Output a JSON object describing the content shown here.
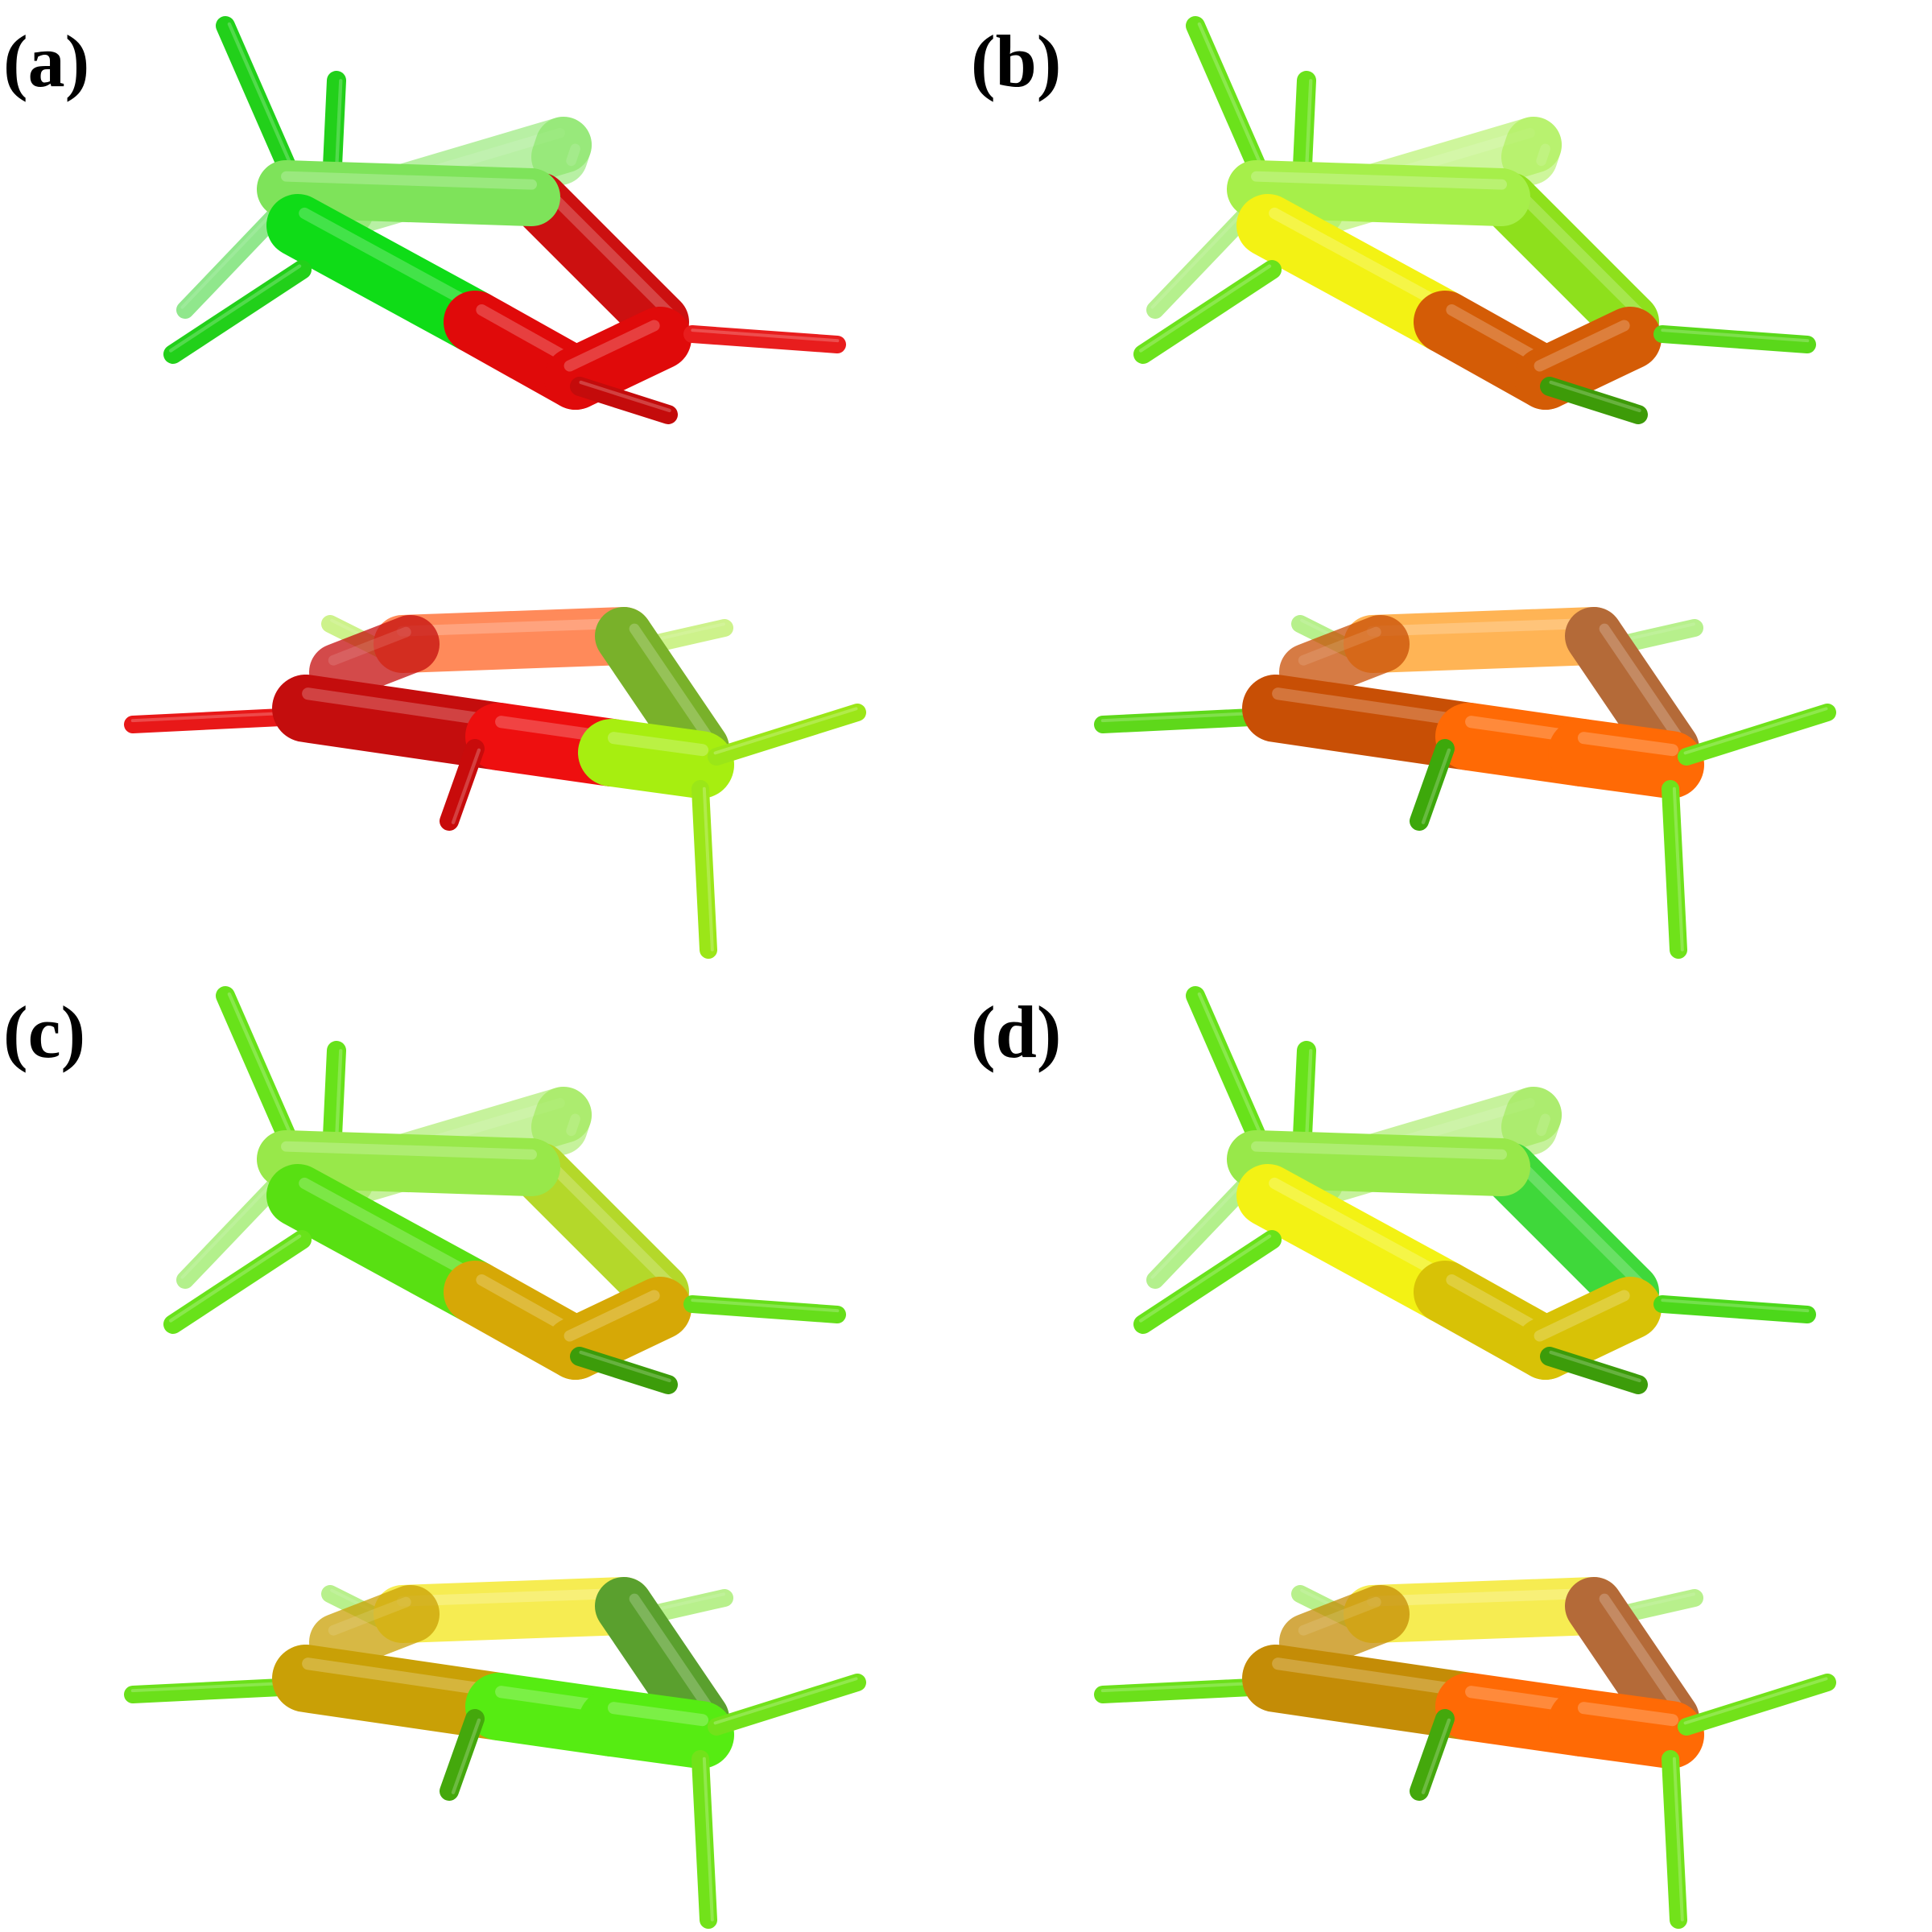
{
  "panels": [
    {
      "id": "a",
      "label": "(a)",
      "top": {
        "back": "#7ee35a",
        "left": "#0fdc17",
        "frontRight": "#e00a0a",
        "rearRight": "#cc1010",
        "stubs": "#22d01a",
        "lowerStub": "#c40b0b",
        "rightStub": "#e81d1d"
      },
      "bottom": {
        "back": "#ff8a5a",
        "frontLeft": "#c40d0d",
        "frontRight": "#ee0f0f",
        "rightEnd": "#a7ee10",
        "stubs": "#9be618",
        "leftStub": "#e81818",
        "lowerStub": "#c80b0b",
        "backRight": "#79b12a"
      }
    },
    {
      "id": "b",
      "label": "(b)",
      "top": {
        "back": "#a6ef4a",
        "left": "#f3f214",
        "frontRight": "#d45c06",
        "rearRight": "#8ee01c",
        "stubs": "#6be21b",
        "lowerStub": "#3d9b08",
        "rightStub": "#5ad81a"
      },
      "bottom": {
        "back": "#ffb455",
        "frontLeft": "#c84f05",
        "frontRight": "#ff6a05",
        "rightEnd": "#ff6a05",
        "stubs": "#6fe21a",
        "leftStub": "#5ed81a",
        "lowerStub": "#3da80b",
        "backRight": "#b46a38"
      }
    },
    {
      "id": "c",
      "label": "(c)",
      "top": {
        "back": "#98e84a",
        "left": "#58e012",
        "frontRight": "#d6a806",
        "rearRight": "#b4d82a",
        "stubs": "#68e21a",
        "lowerStub": "#3c9c0a",
        "rightStub": "#66de1a"
      },
      "bottom": {
        "back": "#f6ec52",
        "frontLeft": "#c9a006",
        "frontRight": "#56ec12",
        "rightEnd": "#56ec12",
        "stubs": "#72e21a",
        "leftStub": "#6be01a",
        "lowerStub": "#44a80c",
        "backRight": "#5aa02e"
      }
    },
    {
      "id": "d",
      "label": "(d)",
      "top": {
        "back": "#98e84a",
        "left": "#f3f214",
        "frontRight": "#d8c206",
        "rearRight": "#3fd83a",
        "stubs": "#68e21a",
        "lowerStub": "#3c9c0a",
        "rightStub": "#4cd81a"
      },
      "bottom": {
        "back": "#f6ec52",
        "frontLeft": "#c48c06",
        "frontRight": "#ff6a05",
        "rightEnd": "#ff6a05",
        "stubs": "#72e21a",
        "leftStub": "#6be01a",
        "lowerStub": "#44a80c",
        "backRight": "#b46a38"
      }
    }
  ]
}
